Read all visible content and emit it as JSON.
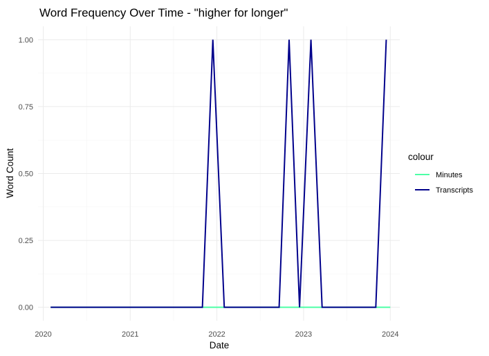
{
  "chart_data": {
    "type": "line",
    "title": "Word Frequency Over Time - \"higher for longer\"",
    "xlabel": "Date",
    "ylabel": "Word Count",
    "x_type": "date",
    "xlim": [
      "2019-12-10",
      "2024-02-10"
    ],
    "ylim": [
      -0.05,
      1.05
    ],
    "x_ticks": [
      {
        "date": "2020-01-01",
        "label": "2020"
      },
      {
        "date": "2021-01-01",
        "label": "2021"
      },
      {
        "date": "2022-01-01",
        "label": "2022"
      },
      {
        "date": "2023-01-01",
        "label": "2023"
      },
      {
        "date": "2024-01-01",
        "label": "2024"
      }
    ],
    "y_ticks": [
      0,
      0.25,
      0.5,
      0.75,
      1
    ],
    "y_tick_labels": [
      "0.00",
      "0.25",
      "0.50",
      "0.75",
      "1.00"
    ],
    "grid": true,
    "legend": {
      "title": "colour",
      "position": "right"
    },
    "series": [
      {
        "name": "Minutes",
        "color": "#4dffa6",
        "x": [
          "2020-02-01",
          "2024-01-01"
        ],
        "y": [
          0,
          0
        ]
      },
      {
        "name": "Transcripts",
        "color": "#00008b",
        "x": [
          "2020-02-01",
          "2020-03-01",
          "2021-11-01",
          "2021-12-15",
          "2022-02-01",
          "2022-09-20",
          "2022-11-01",
          "2022-12-15",
          "2023-02-01",
          "2023-03-20",
          "2023-11-01",
          "2023-12-15"
        ],
        "y": [
          0,
          0,
          0,
          1,
          0,
          0,
          1,
          0,
          1,
          0,
          0,
          1
        ]
      }
    ]
  }
}
